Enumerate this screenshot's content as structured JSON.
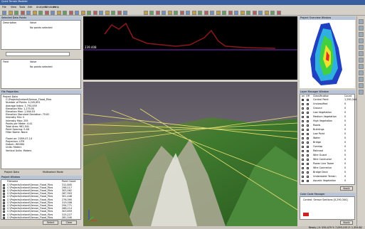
{
  "window": {
    "title": "Quick Terrain Modeler"
  },
  "menu": [
    "File",
    "View",
    "Tools",
    "Edit",
    "Analysis",
    "Windows",
    "Help"
  ],
  "selected_points": {
    "title": "Selected Data Points",
    "columns": [
      "Description",
      "Value"
    ],
    "empty": "No points selected"
  },
  "field_table": {
    "columns": [
      "Field",
      "Value"
    ],
    "empty": "No points selected"
  },
  "file_properties": {
    "title": "File Properties",
    "lines": [
      "Project Data",
      "C:\\Projects\\Iceland\\Sensor_Flood_Files",
      "Number of Points: 4,245,851",
      "Average Index: 1,793,459",
      "Elevation Min: 1,170.00",
      "Elevation Max: 1,564.03",
      "Elevation Standard Deviation: 75.81",
      "Intensity Min: 0",
      "Intensity Max: 255",
      "Points per Meter: 4.41",
      "Total Area: 962,541",
      "Point Spacing: 0.48",
      "Filter Name: None",
      "",
      "Flown on: 2009-07-14",
      "Projection: UTM",
      "Datum: WGS84",
      "Units: Meters",
      "Vertical Units: Meters"
    ]
  },
  "file_checkboxes": [
    "Project Data",
    "Multiselect Mode"
  ],
  "project_window": {
    "title": "Project Window",
    "columns": [
      "Filename",
      "Point Count"
    ],
    "rows": [
      [
        "C:\\Projects\\Iceland\\Sensor_Flood_Files",
        "312,845"
      ],
      [
        "C:\\Projects\\Iceland\\Sensor_Flood_Files",
        "298,117"
      ],
      [
        "C:\\Projects\\Iceland\\Sensor_Flood_Files",
        "305,562"
      ],
      [
        "C:\\Projects\\Iceland\\Sensor_Flood_Files",
        "287,903"
      ],
      [
        "C:\\Projects\\Iceland\\Sensor_Flood_Files",
        "301,448"
      ],
      [
        "C:\\Projects\\Iceland\\Sensor_Flood_Files",
        "276,390"
      ],
      [
        "C:\\Projects\\Iceland\\Sensor_Flood_Files",
        "319,006"
      ],
      [
        "C:\\Projects\\Iceland\\Sensor_Flood_Files",
        "294,771"
      ],
      [
        "C:\\Projects\\Iceland\\Sensor_Flood_Files",
        "288,214"
      ],
      [
        "C:\\Projects\\Iceland\\Sensor_Flood_Files",
        "303,659"
      ],
      [
        "C:\\Projects\\Iceland\\Sensor_Flood_Files",
        "315,227"
      ],
      [
        "C:\\Projects\\Iceland\\Sensor_Flood_Files",
        "281,540"
      ]
    ],
    "buttons": [
      "Select",
      "Clear"
    ]
  },
  "profile": {
    "label": "239.408"
  },
  "overview": {
    "title": "Project Overview Window"
  },
  "layer_manager": {
    "title": "Layer Manager Window",
    "columns": [
      "on",
      "Off",
      "Classification",
      "Count"
    ],
    "rows": [
      [
        "Control Point",
        "1,290,344"
      ],
      [
        "Unclassified",
        "0"
      ],
      [
        "Ground",
        "0"
      ],
      [
        "Low Vegetation",
        "0"
      ],
      [
        "Medium Vegetation",
        "0"
      ],
      [
        "High Vegetation",
        "0"
      ],
      [
        "Roads",
        "0"
      ],
      [
        "Buildings",
        "0"
      ],
      [
        "Low Point",
        "0"
      ],
      [
        "Water",
        "0"
      ],
      [
        "Bridge",
        "0"
      ],
      [
        "Overlap",
        "0"
      ],
      [
        "Railroad",
        "0"
      ],
      [
        "Wire Guard",
        "0"
      ],
      [
        "Wire Conductor",
        "0"
      ],
      [
        "Power Line Tower",
        "0"
      ],
      [
        "Wire Connector",
        "0"
      ],
      [
        "Bridge Deck",
        "0"
      ],
      [
        "Underwater Terrain",
        "0"
      ],
      [
        "Aquatic Vegetation",
        "0"
      ]
    ],
    "button": "Apply"
  },
  "color_code": {
    "title": "Color Code Manager",
    "items": [
      "Control: Sensor Sections [0,290,344]"
    ],
    "button": "Apply"
  },
  "status": "Ready  |  X: 539,479  Y: 7,095,103  Z: 1,354.82"
}
